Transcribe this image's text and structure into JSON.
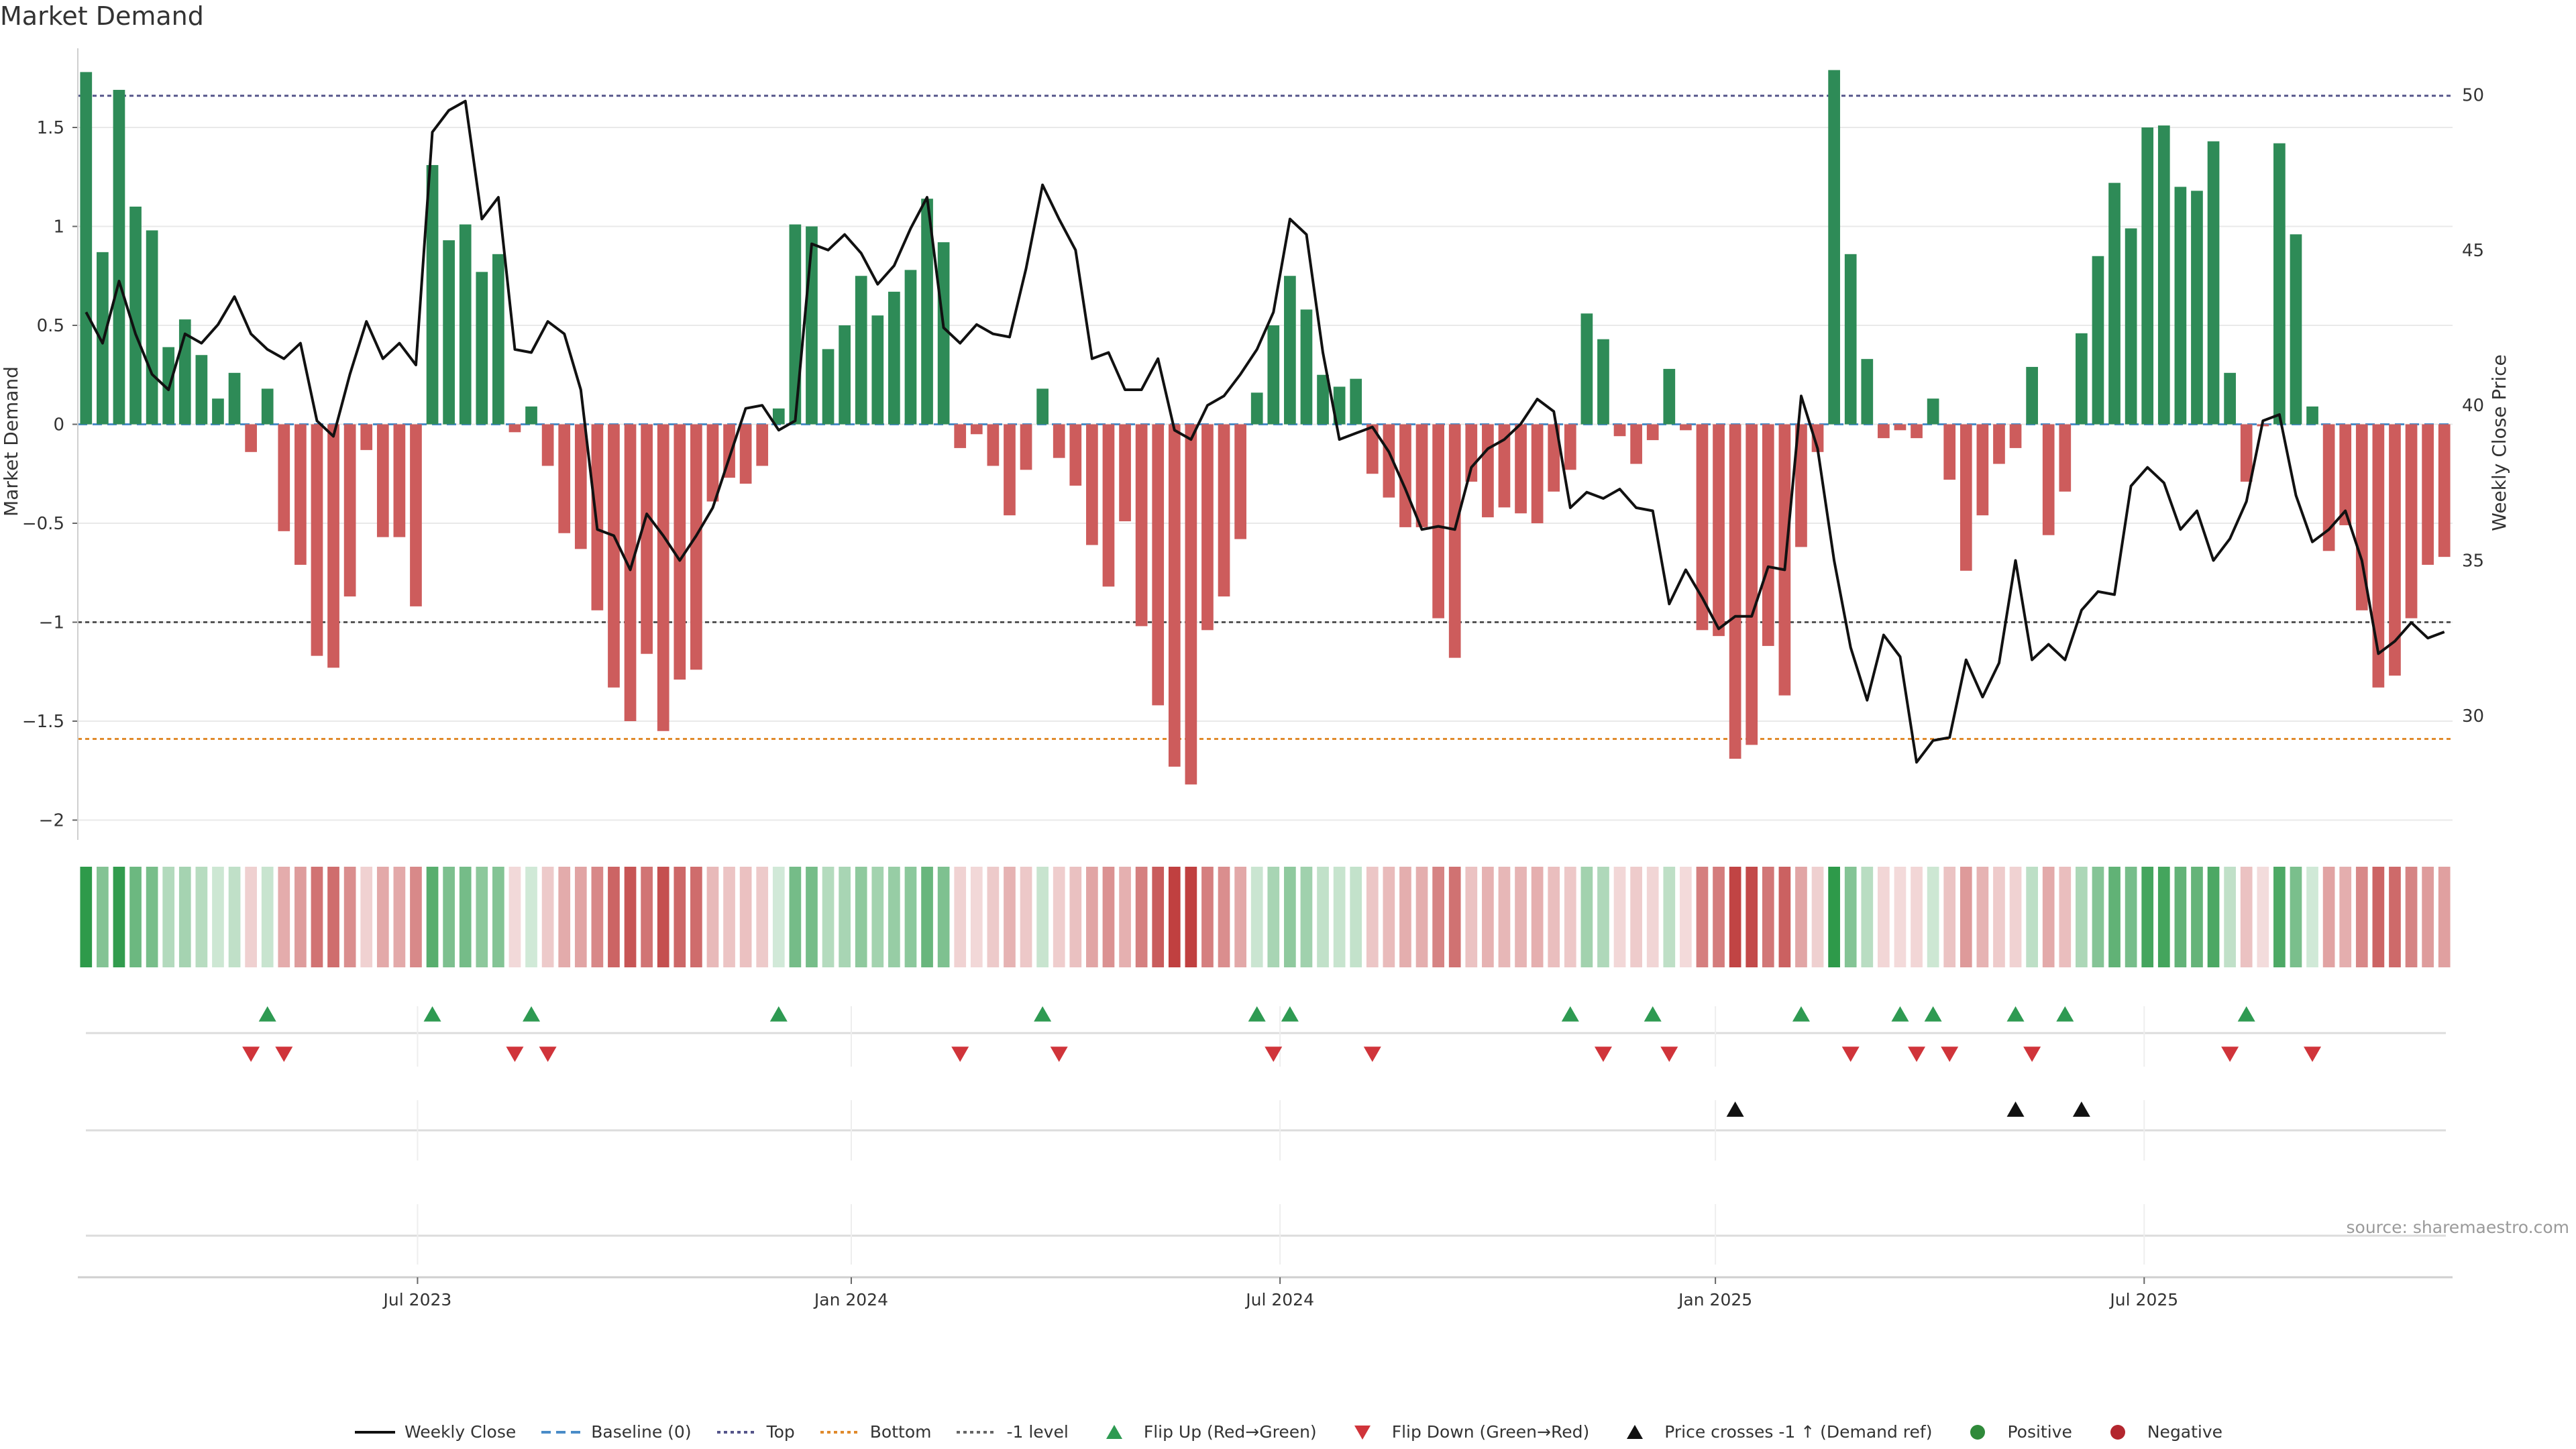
{
  "chart_data": {
    "type": "bar",
    "title": "Market Demand",
    "ylabel_left": "Market Demand",
    "ylabel_right": "Weekly Close Price",
    "source": "source: sharemaestro.com",
    "left_axis": {
      "ylim": [
        -2.1,
        1.9
      ],
      "ticks": [
        1.5,
        1,
        0.5,
        0,
        -0.5,
        -1,
        -1.5,
        -2
      ],
      "tick_labels": [
        "1.5",
        "1",
        "0.5",
        "0",
        "−0.5",
        "−1",
        "−1.5",
        "−2"
      ]
    },
    "right_axis": {
      "ylim": [
        26,
        51.5
      ],
      "ticks": [
        50,
        45,
        40,
        35,
        30
      ],
      "tick_labels": [
        "50",
        "45",
        "40",
        "35",
        "30"
      ]
    },
    "x_axis": {
      "weeks": 144,
      "tick_labels": [
        "Jul 2023",
        "Jan 2024",
        "Jul 2024",
        "Jan 2025",
        "Jul 2025"
      ],
      "tick_weeks": [
        20.6,
        46.9,
        72.9,
        99.3,
        125.3
      ]
    },
    "reference_lines": {
      "top": 1.66,
      "bottom": -1.59,
      "minus_one": -1.0,
      "baseline": 0
    },
    "demand": [
      1.78,
      0.87,
      1.69,
      1.1,
      0.98,
      0.39,
      0.53,
      0.35,
      0.13,
      0.26,
      -0.14,
      0.18,
      -0.54,
      -0.71,
      -1.17,
      -1.23,
      -0.87,
      -0.13,
      -0.57,
      -0.57,
      -0.92,
      1.31,
      0.93,
      1.01,
      0.77,
      0.86,
      -0.04,
      0.09,
      -0.21,
      -0.55,
      -0.63,
      -0.94,
      -1.33,
      -1.5,
      -1.16,
      -1.55,
      -1.29,
      -1.24,
      -0.39,
      -0.27,
      -0.3,
      -0.21,
      0.08,
      1.01,
      1.0,
      0.38,
      0.5,
      0.75,
      0.55,
      0.67,
      0.78,
      1.14,
      0.92,
      -0.12,
      -0.05,
      -0.21,
      -0.46,
      -0.23,
      0.18,
      -0.17,
      -0.31,
      -0.61,
      -0.82,
      -0.49,
      -1.02,
      -1.42,
      -1.73,
      -1.82,
      -1.04,
      -0.87,
      -0.58,
      0.16,
      0.5,
      0.75,
      0.58,
      0.25,
      0.19,
      0.23,
      -0.25,
      -0.37,
      -0.52,
      -0.52,
      -0.98,
      -1.18,
      -0.29,
      -0.47,
      -0.42,
      -0.45,
      -0.5,
      -0.34,
      -0.23,
      0.56,
      0.43,
      -0.06,
      -0.2,
      -0.08,
      0.28,
      -0.03,
      -1.04,
      -1.07,
      -1.69,
      -1.62,
      -1.12,
      -1.37,
      -0.62,
      -0.14,
      1.79,
      0.86,
      0.33,
      -0.07,
      -0.03,
      -0.07,
      0.13,
      -0.28,
      -0.74,
      -0.46,
      -0.2,
      -0.12,
      0.29,
      -0.56,
      -0.34,
      0.46,
      0.85,
      1.22,
      0.99,
      1.5,
      1.51,
      1.2,
      1.18,
      1.43,
      0.26,
      -0.29,
      -0.01,
      1.42,
      0.96,
      0.09,
      -0.64,
      -0.51,
      -0.94,
      -1.33,
      -1.27,
      -0.98,
      -0.71,
      -0.67
    ],
    "weekly_close": [
      43.0,
      42.0,
      44.0,
      42.3,
      41.0,
      40.5,
      42.3,
      42.0,
      42.6,
      43.5,
      42.3,
      41.8,
      41.5,
      42.0,
      39.5,
      39.0,
      41.0,
      42.7,
      41.5,
      42.0,
      41.3,
      48.8,
      49.5,
      49.8,
      46.0,
      46.7,
      41.8,
      41.7,
      42.7,
      42.3,
      40.5,
      36.0,
      35.8,
      34.7,
      36.5,
      35.8,
      35.0,
      35.8,
      36.7,
      38.3,
      39.9,
      40.0,
      39.2,
      39.5,
      45.2,
      45.0,
      45.5,
      44.9,
      43.9,
      44.5,
      45.7,
      46.7,
      42.5,
      42.0,
      42.6,
      42.3,
      42.2,
      44.4,
      47.1,
      46.0,
      45.0,
      41.5,
      41.7,
      40.5,
      40.5,
      41.5,
      39.2,
      38.9,
      40.0,
      40.3,
      41.0,
      41.8,
      43.0,
      46.0,
      45.5,
      41.7,
      38.9,
      39.1,
      39.3,
      38.5,
      37.3,
      36.0,
      36.1,
      36.0,
      38.0,
      38.6,
      38.9,
      39.4,
      40.2,
      39.8,
      36.7,
      37.2,
      37.0,
      37.3,
      36.7,
      36.6,
      33.6,
      34.7,
      33.8,
      32.8,
      33.2,
      33.2,
      34.8,
      34.7,
      40.3,
      38.6,
      35.0,
      32.2,
      30.5,
      32.6,
      31.9,
      28.5,
      29.2,
      29.3,
      31.8,
      30.6,
      31.7,
      35.0,
      31.8,
      32.3,
      31.8,
      33.4,
      34.0,
      33.9,
      37.4,
      38.0,
      37.5,
      36.0,
      36.6,
      35.0,
      35.7,
      36.9,
      39.5,
      39.7,
      37.1,
      35.6,
      36.0,
      36.6,
      35.0,
      32.0,
      32.4,
      33.0,
      32.5,
      32.7
    ],
    "flip_up_weeks": [
      11,
      21,
      27,
      42,
      58,
      71,
      73,
      90,
      95,
      104,
      110,
      112,
      117,
      120,
      131
    ],
    "flip_down_weeks": [
      10,
      12,
      26,
      28,
      53,
      59,
      72,
      78,
      92,
      96,
      107,
      111,
      113,
      118,
      130,
      135
    ],
    "price_cross_weeks": [
      100,
      117,
      121
    ],
    "legend": [
      {
        "label": "Weekly Close",
        "color": "#111111",
        "icon": "solid-line"
      },
      {
        "label": "Baseline (0)",
        "color": "#4a8cc8",
        "icon": "dashed-line"
      },
      {
        "label": "Top",
        "color": "#55558a",
        "icon": "dotted-line"
      },
      {
        "label": "Bottom",
        "color": "#e08a2c",
        "icon": "dotted-line"
      },
      {
        "label": "-1 level",
        "color": "#666666",
        "icon": "dotted-line"
      },
      {
        "label": "Flip Up (Red→Green)",
        "color": "#2e9a52",
        "icon": "triangle-up"
      },
      {
        "label": "Flip Down (Green→Red)",
        "color": "#d0343a",
        "icon": "triangle-down"
      },
      {
        "label": "Price crosses -1 ↑ (Demand ref)",
        "color": "#111111",
        "icon": "triangle-up"
      },
      {
        "label": "Positive",
        "color": "#2f8a3a",
        "icon": "dot"
      },
      {
        "label": "Negative",
        "color": "#b3262e",
        "icon": "dot"
      }
    ],
    "colors": {
      "positive_bar": "#2e8b57",
      "negative_bar": "#cd5c5c",
      "strip_positive": "#2e9a4a",
      "strip_negative": "#c04040"
    }
  }
}
